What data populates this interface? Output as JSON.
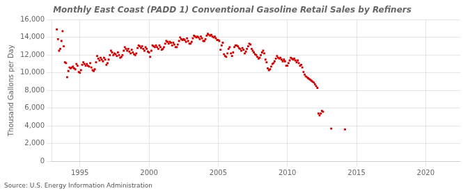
{
  "chart_data": {
    "type": "scatter",
    "title": "Monthly East Coast (PADD 1) Conventional Gasoline Retail Sales by Refiners",
    "ylabel": "Thousand Gallons per Day",
    "annotations": [
      "Source: U.S. Energy Information Administration"
    ],
    "color": "#CC0000",
    "marker": "square",
    "grid": true,
    "xlim": [
      1993.0,
      2022.5
    ],
    "ylim": [
      0,
      16000
    ],
    "xticks": [
      1995,
      2000,
      2005,
      2010,
      2015,
      2020
    ],
    "yticks": [
      0,
      {
        "value": 2000,
        "label": "2,000"
      },
      {
        "value": 4000,
        "label": "4,000"
      },
      {
        "value": 6000,
        "label": "6,000"
      },
      {
        "value": 8000,
        "label": "8,000"
      },
      {
        "value": 10000,
        "label": "10,000"
      },
      {
        "value": 12000,
        "label": "12,000"
      },
      {
        "value": 14000,
        "label": "14,000"
      },
      {
        "value": 16000,
        "label": "16,000"
      }
    ],
    "x": [
      1993.33,
      1993.42,
      1993.5,
      1993.58,
      1993.67,
      1993.75,
      1993.83,
      1993.92,
      1994.0,
      1994.08,
      1994.17,
      1994.25,
      1994.33,
      1994.42,
      1994.5,
      1994.58,
      1994.67,
      1994.75,
      1994.83,
      1994.92,
      1995.0,
      1995.08,
      1995.17,
      1995.25,
      1995.33,
      1995.42,
      1995.5,
      1995.58,
      1995.67,
      1995.75,
      1995.83,
      1995.92,
      1996.0,
      1996.08,
      1996.17,
      1996.25,
      1996.33,
      1996.42,
      1996.5,
      1996.58,
      1996.67,
      1996.75,
      1996.83,
      1996.92,
      1997.0,
      1997.08,
      1997.17,
      1997.25,
      1997.33,
      1997.42,
      1997.5,
      1997.58,
      1997.67,
      1997.75,
      1997.83,
      1997.92,
      1998.0,
      1998.08,
      1998.17,
      1998.25,
      1998.33,
      1998.42,
      1998.5,
      1998.58,
      1998.67,
      1998.75,
      1998.83,
      1998.92,
      1999.0,
      1999.08,
      1999.17,
      1999.25,
      1999.33,
      1999.42,
      1999.5,
      1999.58,
      1999.67,
      1999.75,
      1999.83,
      1999.92,
      2000.0,
      2000.08,
      2000.17,
      2000.25,
      2000.33,
      2000.42,
      2000.5,
      2000.58,
      2000.67,
      2000.75,
      2000.83,
      2000.92,
      2001.0,
      2001.08,
      2001.17,
      2001.25,
      2001.33,
      2001.42,
      2001.5,
      2001.58,
      2001.67,
      2001.75,
      2001.83,
      2001.92,
      2002.0,
      2002.08,
      2002.17,
      2002.25,
      2002.33,
      2002.42,
      2002.5,
      2002.58,
      2002.67,
      2002.75,
      2002.83,
      2002.92,
      2003.0,
      2003.08,
      2003.17,
      2003.25,
      2003.33,
      2003.42,
      2003.5,
      2003.58,
      2003.67,
      2003.75,
      2003.83,
      2003.92,
      2004.0,
      2004.08,
      2004.17,
      2004.25,
      2004.33,
      2004.42,
      2004.5,
      2004.58,
      2004.67,
      2004.75,
      2004.83,
      2004.92,
      2005.0,
      2005.08,
      2005.17,
      2005.25,
      2005.33,
      2005.42,
      2005.5,
      2005.58,
      2005.67,
      2005.75,
      2005.83,
      2005.92,
      2006.0,
      2006.08,
      2006.17,
      2006.25,
      2006.33,
      2006.42,
      2006.5,
      2006.58,
      2006.67,
      2006.75,
      2006.83,
      2006.92,
      2007.0,
      2007.08,
      2007.17,
      2007.25,
      2007.33,
      2007.42,
      2007.5,
      2007.58,
      2007.67,
      2007.75,
      2007.83,
      2007.92,
      2008.0,
      2008.08,
      2008.17,
      2008.25,
      2008.33,
      2008.42,
      2008.5,
      2008.58,
      2008.67,
      2008.75,
      2008.83,
      2008.92,
      2009.0,
      2009.08,
      2009.17,
      2009.25,
      2009.33,
      2009.42,
      2009.5,
      2009.58,
      2009.67,
      2009.75,
      2009.83,
      2009.92,
      2010.0,
      2010.08,
      2010.17,
      2010.25,
      2010.33,
      2010.42,
      2010.5,
      2010.58,
      2010.67,
      2010.75,
      2010.83,
      2010.92,
      2011.0,
      2011.08,
      2011.17,
      2011.25,
      2011.33,
      2011.42,
      2011.5,
      2011.58,
      2011.67,
      2011.75,
      2011.83,
      2011.92,
      2012.0,
      2012.08,
      2012.17,
      2012.25,
      2012.33,
      2012.42,
      2012.5,
      2012.58,
      2013.17,
      2014.17
    ],
    "values": [
      14900,
      13800,
      12500,
      12700,
      13600,
      14700,
      13000,
      11200,
      11100,
      9500,
      10200,
      10600,
      10500,
      10600,
      10700,
      10500,
      10400,
      11000,
      10800,
      10100,
      10000,
      10300,
      10900,
      11200,
      11000,
      10800,
      11000,
      10800,
      10700,
      11100,
      10600,
      10300,
      10200,
      10400,
      11200,
      11900,
      11600,
      11400,
      11700,
      11500,
      11300,
      11700,
      11500,
      10900,
      11100,
      11500,
      12000,
      12500,
      12300,
      12000,
      12200,
      12100,
      11900,
      12300,
      12000,
      11700,
      11800,
      12000,
      12500,
      12900,
      12700,
      12500,
      12700,
      12400,
      12200,
      12600,
      12300,
      12100,
      12000,
      12200,
      12800,
      13100,
      13000,
      12800,
      13000,
      12700,
      12500,
      12900,
      12700,
      12400,
      12300,
      11800,
      12500,
      13100,
      13000,
      12900,
      13100,
      12900,
      12700,
      13100,
      12900,
      12600,
      12700,
      12900,
      13300,
      13600,
      13500,
      13300,
      13500,
      13400,
      13100,
      13400,
      13200,
      12900,
      12900,
      13200,
      13600,
      14000,
      13800,
      13700,
      13800,
      13700,
      13500,
      13900,
      13600,
      13300,
      13300,
      13500,
      13900,
      14200,
      14100,
      14000,
      14100,
      14000,
      13800,
      14100,
      13900,
      13600,
      13600,
      13800,
      14200,
      14400,
      14300,
      14200,
      14300,
      14100,
      14000,
      14100,
      13900,
      13700,
      13700,
      13600,
      12600,
      13100,
      13400,
      12100,
      11900,
      11800,
      12200,
      12700,
      12900,
      12200,
      11900,
      12300,
      12900,
      13100,
      13100,
      13000,
      12800,
      12700,
      12500,
      12800,
      12600,
      12200,
      12400,
      12700,
      13000,
      13300,
      13200,
      12700,
      12500,
      12300,
      12100,
      12000,
      11800,
      11600,
      11700,
      12000,
      12300,
      12500,
      12200,
      11500,
      11200,
      10500,
      10300,
      10400,
      10700,
      11000,
      11100,
      11300,
      11600,
      11900,
      11700,
      11600,
      11700,
      11500,
      11300,
      11500,
      11300,
      10800,
      10800,
      11100,
      11400,
      11700,
      11600,
      11500,
      11600,
      11400,
      11200,
      11400,
      11100,
      10800,
      10900,
      10600,
      10100,
      9800,
      9600,
      9500,
      9400,
      9300,
      9200,
      9100,
      9000,
      8900,
      8700,
      8500,
      8300,
      5400,
      5200,
      5400,
      5700,
      5600,
      3700,
      3600
    ]
  }
}
